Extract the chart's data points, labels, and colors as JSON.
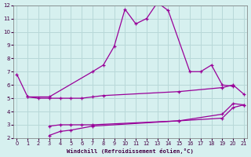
{
  "xlabel": "Windchill (Refroidissement éolien,°C)",
  "xlim": [
    0,
    21
  ],
  "ylim": [
    2,
    12
  ],
  "xticks": [
    0,
    1,
    2,
    3,
    4,
    5,
    6,
    7,
    8,
    9,
    10,
    11,
    12,
    13,
    14,
    15,
    16,
    17,
    18,
    19,
    20,
    21
  ],
  "yticks": [
    2,
    3,
    4,
    5,
    6,
    7,
    8,
    9,
    10,
    11,
    12
  ],
  "background_color": "#d6f0ef",
  "line_color": "#990099",
  "grid_color": "#b8d8d8",
  "series": [
    {
      "x": [
        0,
        1,
        3,
        7,
        8,
        9,
        10,
        11,
        12,
        13,
        14,
        16,
        17,
        18,
        19,
        20
      ],
      "y": [
        6.8,
        5.1,
        5.1,
        7.0,
        7.5,
        8.9,
        11.7,
        10.6,
        11.0,
        12.2,
        11.6,
        7.0,
        7.0,
        7.5,
        6.0,
        5.9
      ]
    },
    {
      "x": [
        1,
        2,
        3,
        4,
        5,
        6,
        7,
        8,
        15,
        19,
        20,
        21
      ],
      "y": [
        5.1,
        5.0,
        5.0,
        5.0,
        5.0,
        5.0,
        5.1,
        5.2,
        5.5,
        5.8,
        6.0,
        5.3
      ]
    },
    {
      "x": [
        3,
        4,
        5,
        6,
        7,
        15,
        19,
        20,
        21
      ],
      "y": [
        2.9,
        3.0,
        3.0,
        3.0,
        3.0,
        3.3,
        3.8,
        4.6,
        4.5
      ]
    },
    {
      "x": [
        3,
        4,
        5,
        7,
        15,
        19,
        20,
        21
      ],
      "y": [
        2.2,
        2.5,
        2.6,
        2.9,
        3.3,
        3.5,
        4.3,
        4.5
      ]
    }
  ]
}
